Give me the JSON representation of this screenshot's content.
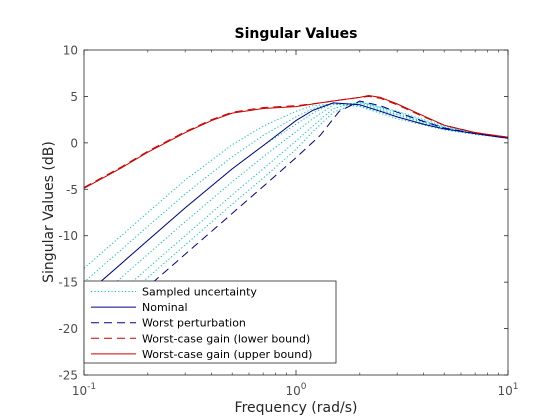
{
  "chart_data": {
    "type": "line",
    "title": "Singular Values",
    "xlabel": "Frequency (rad/s)",
    "ylabel": "Singular Values (dB)",
    "x_scale": "log",
    "xlim": [
      0.1,
      10
    ],
    "ylim": [
      -25,
      10
    ],
    "grid": false,
    "legend_position": "bottom-left",
    "x_ticks": [
      {
        "value": 0.1,
        "base": "10",
        "exp": "-1"
      },
      {
        "value": 1,
        "base": "10",
        "exp": "0"
      },
      {
        "value": 10,
        "base": "10",
        "exp": "1"
      }
    ],
    "y_ticks": [
      {
        "value": 10,
        "label": "10"
      },
      {
        "value": 5,
        "label": "5"
      },
      {
        "value": 0,
        "label": "0"
      },
      {
        "value": -5,
        "label": "-5"
      },
      {
        "value": -10,
        "label": "-10"
      },
      {
        "value": -15,
        "label": "-15"
      },
      {
        "value": -20,
        "label": "-20"
      },
      {
        "value": -25,
        "label": "-25"
      }
    ],
    "series": [
      {
        "name": "Sampled uncertainty",
        "color": "#00bfbf",
        "style": "dotted",
        "curves": [
          {
            "x": [
              0.1,
              0.15,
              0.2,
              0.3,
              0.5,
              0.7,
              1.0,
              1.2,
              1.5,
              2.0,
              3.0,
              5.0,
              7.0,
              10.0
            ],
            "y": [
              -13.5,
              -10.0,
              -7.5,
              -4.0,
              -0.2,
              1.8,
              3.4,
              4.0,
              4.2,
              3.9,
              2.6,
              1.4,
              0.9,
              0.5
            ]
          },
          {
            "x": [
              0.1,
              0.15,
              0.2,
              0.3,
              0.5,
              0.7,
              1.0,
              1.2,
              1.5,
              2.0,
              3.0,
              5.0,
              7.0,
              10.0
            ],
            "y": [
              -15.0,
              -11.5,
              -9.0,
              -5.5,
              -1.5,
              0.8,
              2.8,
              3.7,
              4.3,
              4.0,
              2.8,
              1.5,
              1.0,
              0.5
            ]
          },
          {
            "x": [
              0.1,
              0.15,
              0.2,
              0.3,
              0.5,
              0.7,
              1.0,
              1.2,
              1.5,
              2.0,
              3.0,
              5.0,
              7.0,
              10.0
            ],
            "y": [
              -16.5,
              -13.0,
              -10.5,
              -7.0,
              -2.8,
              -0.3,
              2.0,
              3.2,
              4.3,
              4.1,
              3.0,
              1.6,
              1.0,
              0.6
            ]
          },
          {
            "x": [
              0.1,
              0.15,
              0.2,
              0.3,
              0.5,
              0.7,
              1.0,
              1.2,
              1.5,
              2.0,
              3.0,
              5.0,
              7.0,
              10.0
            ],
            "y": [
              -18.0,
              -14.5,
              -12.0,
              -8.5,
              -4.2,
              -1.5,
              1.2,
              2.6,
              4.1,
              4.3,
              3.1,
              1.6,
              1.0,
              0.6
            ]
          },
          {
            "x": [
              0.1,
              0.15,
              0.2,
              0.3,
              0.5,
              0.7,
              1.0,
              1.2,
              1.5,
              2.0,
              3.0,
              5.0,
              7.0,
              10.0
            ],
            "y": [
              -19.5,
              -16.0,
              -13.5,
              -10.0,
              -5.6,
              -2.8,
              0.2,
              1.8,
              3.7,
              4.4,
              3.3,
              1.7,
              1.1,
              0.6
            ]
          },
          {
            "x": [
              0.1,
              0.15,
              0.2,
              0.3,
              0.5,
              0.7,
              1.0,
              1.2,
              1.5,
              2.0,
              3.0,
              5.0,
              7.0,
              10.0
            ],
            "y": [
              -20.5,
              -17.0,
              -14.5,
              -11.0,
              -6.6,
              -3.8,
              -0.7,
              1.2,
              3.3,
              4.4,
              3.4,
              1.8,
              1.1,
              0.6
            ]
          }
        ]
      },
      {
        "name": "Nominal",
        "color": "#00008b",
        "style": "solid",
        "x": [
          0.1,
          0.15,
          0.2,
          0.3,
          0.5,
          0.7,
          1.0,
          1.2,
          1.5,
          2.0,
          2.5,
          3.0,
          4.0,
          5.0,
          7.0,
          10.0
        ],
        "y": [
          -16.5,
          -13.0,
          -10.5,
          -7.0,
          -2.8,
          -0.3,
          2.4,
          3.5,
          4.3,
          4.1,
          3.4,
          2.8,
          2.0,
          1.5,
          1.0,
          0.5
        ]
      },
      {
        "name": "Worst perturbation",
        "color": "#00008b",
        "style": "dashed",
        "x": [
          0.1,
          0.15,
          0.2,
          0.3,
          0.5,
          0.7,
          1.0,
          1.3,
          1.6,
          2.0,
          2.5,
          3.0,
          4.0,
          5.0,
          7.0,
          10.0
        ],
        "y": [
          -21.5,
          -18.0,
          -15.5,
          -12.0,
          -7.6,
          -4.7,
          -1.6,
          0.8,
          3.4,
          4.5,
          4.0,
          3.3,
          2.3,
          1.6,
          1.0,
          0.5
        ]
      },
      {
        "name": "Worst-case gain (lower bound)",
        "color": "#cc0000",
        "style": "dashed",
        "x": [
          0.1,
          0.15,
          0.2,
          0.3,
          0.4,
          0.5,
          0.7,
          1.0,
          1.3,
          1.6,
          2.0,
          2.2,
          2.5,
          3.0,
          4.0,
          5.0,
          7.0,
          10.0
        ],
        "y": [
          -4.8,
          -2.6,
          -0.9,
          1.2,
          2.5,
          3.3,
          3.8,
          4.0,
          4.3,
          4.6,
          4.9,
          5.0,
          4.8,
          4.1,
          2.8,
          1.9,
          1.1,
          0.6
        ]
      },
      {
        "name": "Worst-case gain (upper bound)",
        "color": "#cc0000",
        "style": "solid",
        "x": [
          0.1,
          0.15,
          0.2,
          0.3,
          0.4,
          0.5,
          0.7,
          1.0,
          1.3,
          1.6,
          2.0,
          2.2,
          2.5,
          3.0,
          4.0,
          5.0,
          7.0,
          10.0
        ],
        "y": [
          -4.9,
          -2.7,
          -1.0,
          1.1,
          2.4,
          3.2,
          3.7,
          3.9,
          4.3,
          4.6,
          4.9,
          5.1,
          4.9,
          4.2,
          2.9,
          1.9,
          1.1,
          0.6
        ]
      }
    ]
  }
}
